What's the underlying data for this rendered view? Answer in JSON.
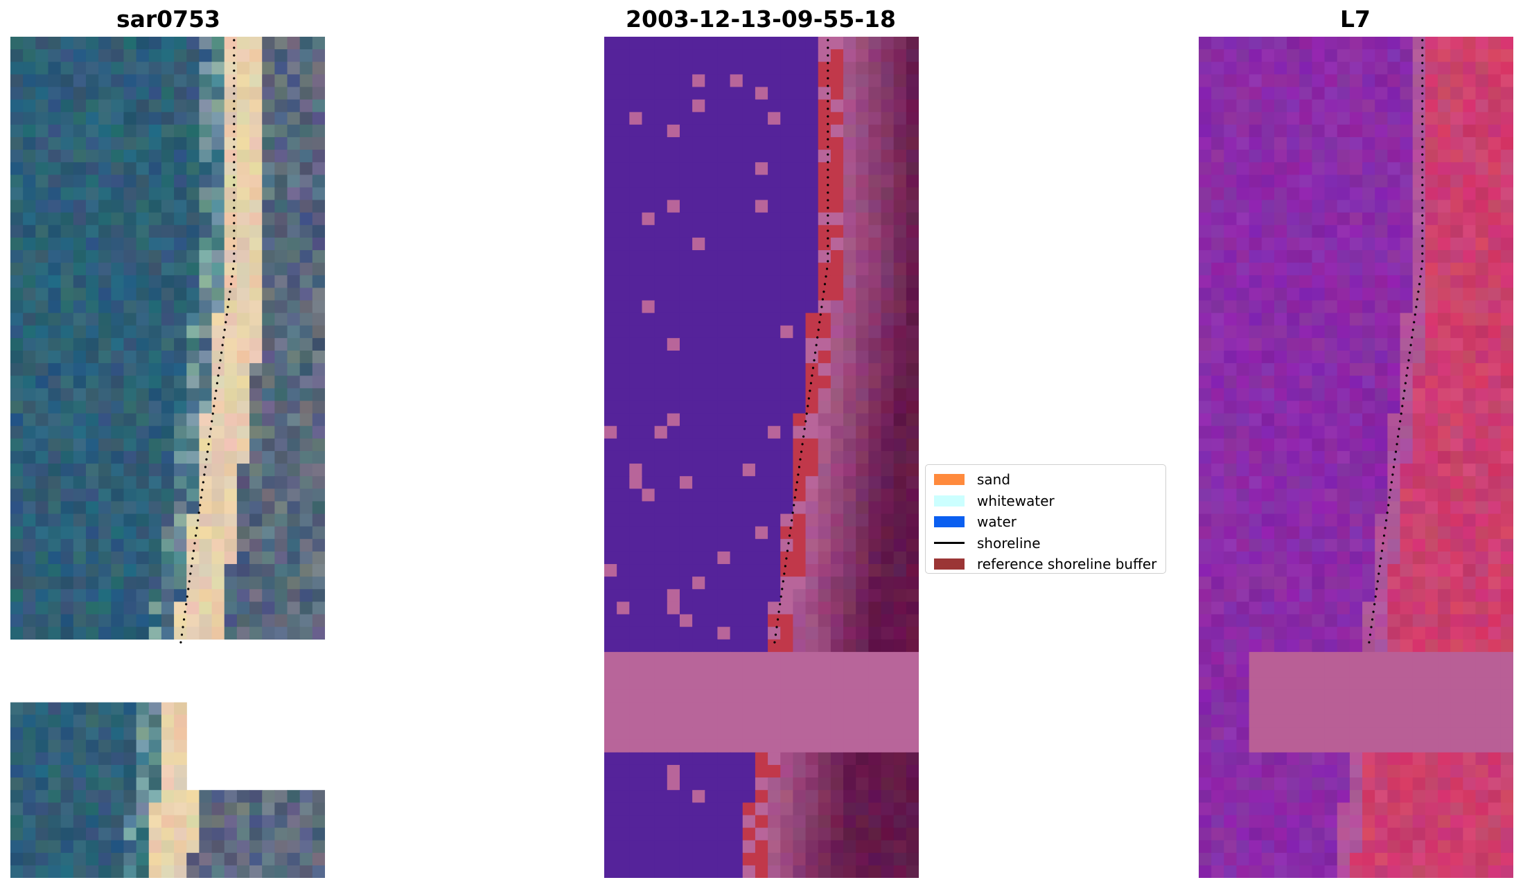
{
  "panels": [
    {
      "title": "sar0753",
      "kind": "rgb"
    },
    {
      "title": "2003-12-13-09-55-18",
      "kind": "classified"
    },
    {
      "title": "L7",
      "kind": "false-color"
    }
  ],
  "legend": {
    "items": [
      {
        "label": "sand",
        "type": "patch",
        "color": "#ff8a3d"
      },
      {
        "label": "whitewater",
        "type": "patch",
        "color": "#ccffff"
      },
      {
        "label": "water",
        "type": "patch",
        "color": "#0b5ff0"
      },
      {
        "label": "shoreline",
        "type": "line",
        "color": "#000000"
      },
      {
        "label": "reference shoreline buffer",
        "type": "patch",
        "color": "#9b3535"
      }
    ]
  },
  "colors": {
    "rgb_water": "#2f5f78",
    "rgb_beach": "#e6cfad",
    "class_water": "#55239a",
    "class_land": "#b8659a",
    "class_buffer": "#c1384a",
    "fc_water": "#8a2ca8",
    "fc_land": "#cc3f6f"
  }
}
